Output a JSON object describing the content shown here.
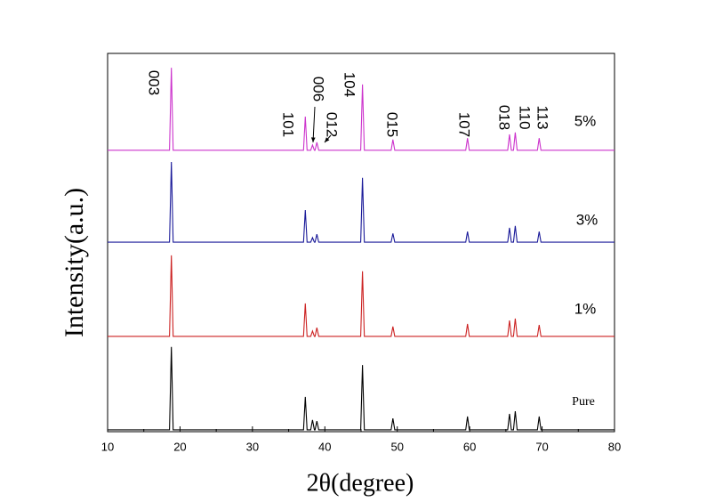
{
  "chart_data": {
    "type": "line",
    "xlabel": "2θ(degree)",
    "ylabel": "Intensity(a.u.)",
    "xlim": [
      10,
      80
    ],
    "xticks": [
      10,
      20,
      30,
      40,
      50,
      60,
      70,
      80
    ],
    "ylim": [
      0,
      100
    ],
    "x": [
      10,
      18.55,
      18.8,
      19.05,
      37.05,
      37.3,
      37.55,
      38.05,
      38.3,
      38.55,
      38.65,
      38.9,
      39.15,
      44.95,
      45.2,
      45.45,
      49.15,
      49.4,
      49.65,
      59.45,
      59.7,
      59.95,
      65.25,
      65.5,
      65.75,
      66.05,
      66.3,
      66.55,
      69.35,
      69.6,
      69.85,
      80
    ],
    "series": [
      {
        "name": "Pure",
        "color": "#000000",
        "values": [
          0.5,
          0.5,
          22.4,
          0.5,
          0.5,
          9.2,
          0.5,
          0.5,
          3.1,
          0.5,
          0.5,
          2.8,
          0.5,
          0.5,
          17.6,
          0.5,
          0.5,
          3.5,
          0.5,
          0.5,
          4,
          0.5,
          0.5,
          4.7,
          0.5,
          0.5,
          5.4,
          0.5,
          0.5,
          4,
          0.5,
          0.5
        ]
      },
      {
        "name": "1%",
        "color": "#cc2222",
        "values": [
          25.2,
          25.2,
          46.6,
          25.2,
          25.2,
          33.9,
          25.2,
          25.2,
          26.6,
          25.2,
          25.2,
          27.5,
          25.2,
          25.2,
          42.4,
          25.2,
          25.2,
          27.8,
          25.2,
          25.2,
          28.5,
          25.2,
          25.2,
          29.4,
          25.2,
          25.2,
          29.9,
          25.2,
          25.2,
          28.2,
          25.2,
          25.2
        ]
      },
      {
        "name": "3%",
        "color": "#1a1a99",
        "values": [
          50.1,
          50.1,
          71.3,
          50.1,
          50.1,
          58.6,
          50.1,
          50.1,
          51.3,
          50.1,
          50.1,
          52.2,
          50.1,
          50.1,
          67.1,
          50.1,
          50.1,
          52.4,
          50.1,
          50.1,
          52.9,
          50.1,
          50.1,
          53.9,
          50.1,
          50.1,
          54.4,
          50.1,
          50.1,
          52.9,
          50.1,
          50.1
        ]
      },
      {
        "name": "5%",
        "color": "#cc33cc",
        "values": [
          74.4,
          74.4,
          96.2,
          74.4,
          74.4,
          83.3,
          74.4,
          74.4,
          75.8,
          74.4,
          74.4,
          76.5,
          74.4,
          74.4,
          91.8,
          74.4,
          74.4,
          77.2,
          74.4,
          74.4,
          77.6,
          74.4,
          74.4,
          78.6,
          74.4,
          74.4,
          79.1,
          74.4,
          74.4,
          77.6,
          74.4,
          74.4
        ]
      }
    ],
    "annotations": [
      "003",
      "101",
      "006",
      "012",
      "104",
      "015",
      "107",
      "018",
      "110",
      "113"
    ]
  }
}
